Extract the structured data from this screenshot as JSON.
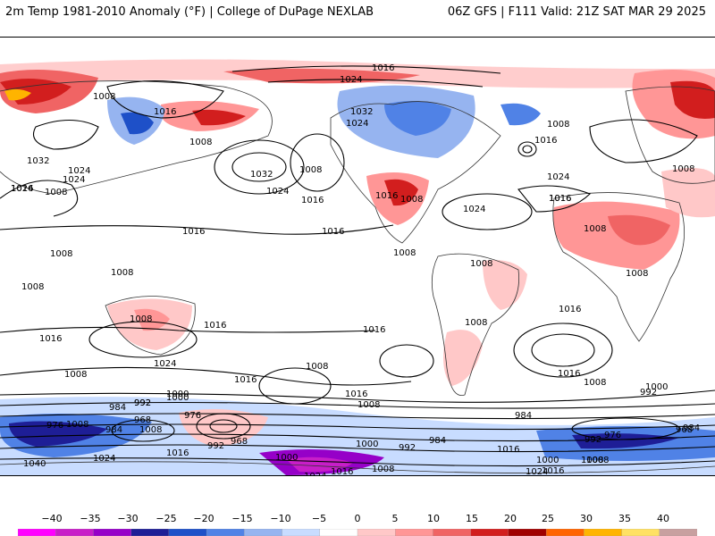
{
  "header": {
    "title_left": "2m Temp 1981-2010 Anomaly (°F) | College of DuPage NEXLAB",
    "title_right": "06Z GFS | F111 Valid: 21Z SAT MAR 29 2025"
  },
  "map": {
    "isobar_labels": [
      "1016",
      "1024",
      "1008",
      "1032",
      "1024",
      "1008",
      "1016",
      "1008",
      "1032",
      "1008",
      "1024",
      "1016",
      "1016",
      "1016",
      "1008",
      "1024",
      "1024",
      "1024",
      "1008",
      "1024",
      "1032",
      "1016",
      "1008",
      "1016",
      "1016",
      "1024",
      "1016",
      "1008",
      "1008",
      "1016",
      "1008",
      "1008",
      "1008",
      "1008",
      "1008",
      "1008",
      "1008",
      "1016",
      "1016",
      "1016",
      "1008",
      "1016",
      "1024",
      "1008",
      "1016",
      "1008",
      "992",
      "1000",
      "984",
      "968",
      "976",
      "976",
      "984",
      "1008",
      "992",
      "968",
      "1000",
      "1016",
      "1000",
      "992",
      "984",
      "1016",
      "1024",
      "1040",
      "1024",
      "1008",
      "1000",
      "992",
      "984",
      "1008",
      "1000",
      "1016",
      "1016",
      "976",
      "968",
      "984",
      "992",
      "1008",
      "1000",
      "992",
      "1008",
      "1024",
      "1016",
      "1008",
      "1016"
    ],
    "colors": {
      "cold_extreme": "#ff00ff",
      "cold_1": "#c81ec8",
      "cold_2": "#9600c8",
      "cold_3": "#1e1e96",
      "cold_4": "#1e50c8",
      "cold_5": "#5082e6",
      "cold_6": "#96b4f0",
      "cold_7": "#c8dcff",
      "neutral": "#ffffff",
      "warm_1": "#ffc8c8",
      "warm_2": "#ff9696",
      "warm_3": "#f06464",
      "warm_4": "#d21e1e",
      "warm_5": "#a00000",
      "warm_6": "#ff6400",
      "warm_7": "#ffb400",
      "warm_8": "#ffe164",
      "warm_extreme": "#c8a0a0"
    }
  },
  "colorbar": {
    "labels": [
      "−40",
      "−35",
      "−30",
      "−25",
      "−20",
      "−15",
      "−10",
      "−5",
      "0",
      "5",
      "10",
      "15",
      "20",
      "25",
      "30",
      "35",
      "40"
    ],
    "colors": [
      "#ff00ff",
      "#c81ec8",
      "#9600c8",
      "#1e1e96",
      "#1e50c8",
      "#5082e6",
      "#96b4f0",
      "#c8dcff",
      "#ffffff",
      "#ffc8c8",
      "#ff9696",
      "#f06464",
      "#d21e1e",
      "#a00000",
      "#ff6400",
      "#ffb400",
      "#ffe164",
      "#c8a0a0"
    ]
  }
}
